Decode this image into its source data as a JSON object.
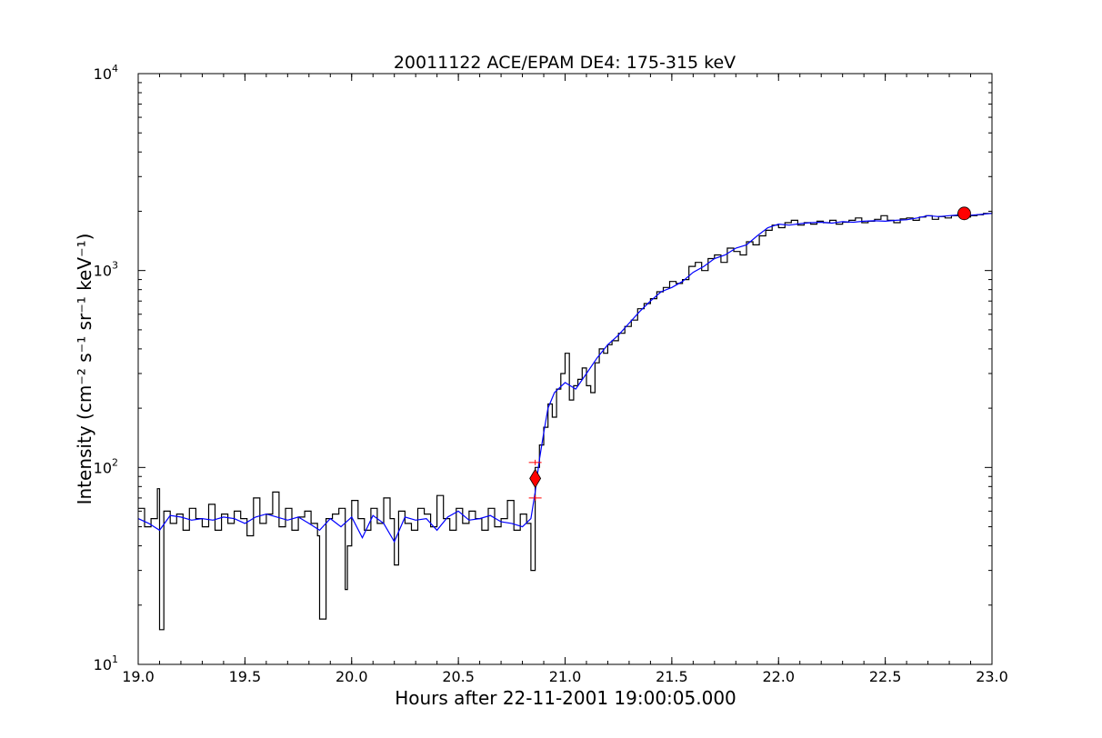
{
  "chart_data": {
    "type": "line",
    "title": "20011122 ACE/EPAM DE4: 175-315 keV",
    "xlabel": "Hours after 22-11-2001 19:00:05.000",
    "ylabel": "Intensity (cm⁻² s⁻¹ sr⁻¹ keV⁻¹)",
    "xlim": [
      19.0,
      23.0
    ],
    "ylim": [
      10,
      10000
    ],
    "yscale": "log",
    "grid": false,
    "x_ticks": [
      "19.0",
      "19.5",
      "20.0",
      "20.5",
      "21.0",
      "21.5",
      "22.0",
      "22.5",
      "23.0"
    ],
    "y_ticks": [
      {
        "base": "10",
        "exp": "1"
      },
      {
        "base": "10",
        "exp": "2"
      },
      {
        "base": "10",
        "exp": "3"
      },
      {
        "base": "10",
        "exp": "4"
      }
    ],
    "series": [
      {
        "style": "steps",
        "color": "#000000",
        "x": [
          19.0,
          19.03,
          19.06,
          19.09,
          19.1,
          19.12,
          19.15,
          19.18,
          19.21,
          19.24,
          19.27,
          19.3,
          19.33,
          19.36,
          19.39,
          19.42,
          19.45,
          19.48,
          19.51,
          19.54,
          19.57,
          19.6,
          19.63,
          19.66,
          19.69,
          19.72,
          19.75,
          19.78,
          19.81,
          19.84,
          19.85,
          19.88,
          19.91,
          19.94,
          19.97,
          19.98,
          20.0,
          20.03,
          20.06,
          20.09,
          20.12,
          20.15,
          20.18,
          20.2,
          20.22,
          20.25,
          20.28,
          20.31,
          20.34,
          20.37,
          20.4,
          20.43,
          20.46,
          20.49,
          20.52,
          20.55,
          20.58,
          20.61,
          20.64,
          20.67,
          20.7,
          20.73,
          20.76,
          20.79,
          20.82,
          20.84,
          20.86,
          20.88,
          20.9,
          20.92,
          20.94,
          20.96,
          20.98,
          21.0,
          21.02,
          21.04,
          21.06,
          21.08,
          21.1,
          21.12,
          21.14,
          21.16,
          21.18,
          21.2,
          21.22,
          21.25,
          21.28,
          21.31,
          21.34,
          21.37,
          21.4,
          21.43,
          21.46,
          21.49,
          21.52,
          21.55,
          21.58,
          21.61,
          21.64,
          21.67,
          21.7,
          21.73,
          21.76,
          21.79,
          21.82,
          21.85,
          21.88,
          21.91,
          21.94,
          21.97,
          22.0,
          22.03,
          22.06,
          22.09,
          22.12,
          22.15,
          22.18,
          22.21,
          22.24,
          22.27,
          22.3,
          22.33,
          22.36,
          22.39,
          22.42,
          22.45,
          22.48,
          22.51,
          22.54,
          22.57,
          22.6,
          22.63,
          22.66,
          22.69,
          22.72,
          22.75,
          22.78,
          22.81,
          22.84,
          22.87,
          22.9,
          22.93,
          22.96,
          23.0
        ],
        "y": [
          62,
          50,
          55,
          78,
          15,
          60,
          52,
          58,
          48,
          62,
          55,
          50,
          65,
          48,
          58,
          52,
          60,
          55,
          45,
          70,
          52,
          58,
          75,
          50,
          62,
          48,
          56,
          60,
          52,
          45,
          17,
          55,
          58,
          62,
          24,
          40,
          68,
          55,
          48,
          62,
          52,
          70,
          55,
          32,
          60,
          52,
          48,
          62,
          58,
          50,
          72,
          55,
          48,
          62,
          52,
          60,
          55,
          48,
          62,
          50,
          55,
          68,
          48,
          58,
          52,
          30,
          100,
          130,
          160,
          210,
          180,
          250,
          300,
          380,
          220,
          260,
          280,
          320,
          260,
          240,
          340,
          400,
          380,
          420,
          440,
          480,
          520,
          560,
          640,
          680,
          720,
          780,
          820,
          880,
          860,
          900,
          1050,
          1100,
          1000,
          1150,
          1200,
          1100,
          1300,
          1250,
          1200,
          1400,
          1350,
          1500,
          1600,
          1700,
          1650,
          1750,
          1800,
          1700,
          1750,
          1720,
          1780,
          1750,
          1800,
          1720,
          1760,
          1800,
          1850,
          1750,
          1780,
          1820,
          1900,
          1800,
          1750,
          1830,
          1850,
          1800,
          1870,
          1900,
          1820,
          1880,
          1850,
          1900,
          1950,
          1870,
          1900,
          1920,
          1950,
          2000
        ]
      },
      {
        "style": "line",
        "color": "#0000ff",
        "x": [
          19.0,
          19.05,
          19.1,
          19.15,
          19.2,
          19.25,
          19.3,
          19.35,
          19.4,
          19.45,
          19.5,
          19.55,
          19.6,
          19.65,
          19.7,
          19.75,
          19.8,
          19.85,
          19.9,
          19.95,
          20.0,
          20.05,
          20.1,
          20.15,
          20.2,
          20.25,
          20.3,
          20.35,
          20.4,
          20.45,
          20.5,
          20.55,
          20.6,
          20.65,
          20.7,
          20.75,
          20.8,
          20.84,
          20.86,
          20.88,
          20.9,
          20.92,
          20.95,
          21.0,
          21.05,
          21.1,
          21.15,
          21.2,
          21.25,
          21.3,
          21.35,
          21.4,
          21.45,
          21.5,
          21.55,
          21.6,
          21.65,
          21.7,
          21.75,
          21.8,
          21.85,
          21.9,
          21.95,
          22.0,
          22.05,
          22.1,
          22.15,
          22.2,
          22.25,
          22.3,
          22.35,
          22.4,
          22.45,
          22.5,
          22.55,
          22.6,
          22.65,
          22.7,
          22.75,
          22.8,
          22.85,
          22.9,
          22.95,
          23.0
        ],
        "y": [
          55,
          52,
          48,
          57,
          56,
          54,
          55,
          54,
          56,
          55,
          52,
          56,
          58,
          56,
          54,
          56,
          52,
          48,
          55,
          50,
          56,
          44,
          57,
          52,
          42,
          56,
          54,
          55,
          48,
          56,
          60,
          54,
          55,
          57,
          53,
          52,
          50,
          55,
          75,
          110,
          150,
          200,
          240,
          270,
          250,
          300,
          360,
          420,
          470,
          540,
          620,
          700,
          780,
          820,
          880,
          980,
          1050,
          1150,
          1200,
          1300,
          1350,
          1500,
          1650,
          1720,
          1700,
          1730,
          1750,
          1760,
          1740,
          1770,
          1760,
          1780,
          1790,
          1780,
          1800,
          1810,
          1850,
          1900,
          1880,
          1900,
          1920,
          1910,
          1930,
          1950
        ]
      }
    ],
    "markers": [
      {
        "shape": "diamond",
        "color": "#ff0000",
        "x": 20.86,
        "y": 88
      },
      {
        "shape": "circle",
        "color": "#ff0000",
        "x": 22.87,
        "y": 1950
      }
    ],
    "error_ticks": [
      {
        "color": "#ff0000",
        "x": 20.86,
        "y_low": 70,
        "y_high": 106
      }
    ]
  }
}
